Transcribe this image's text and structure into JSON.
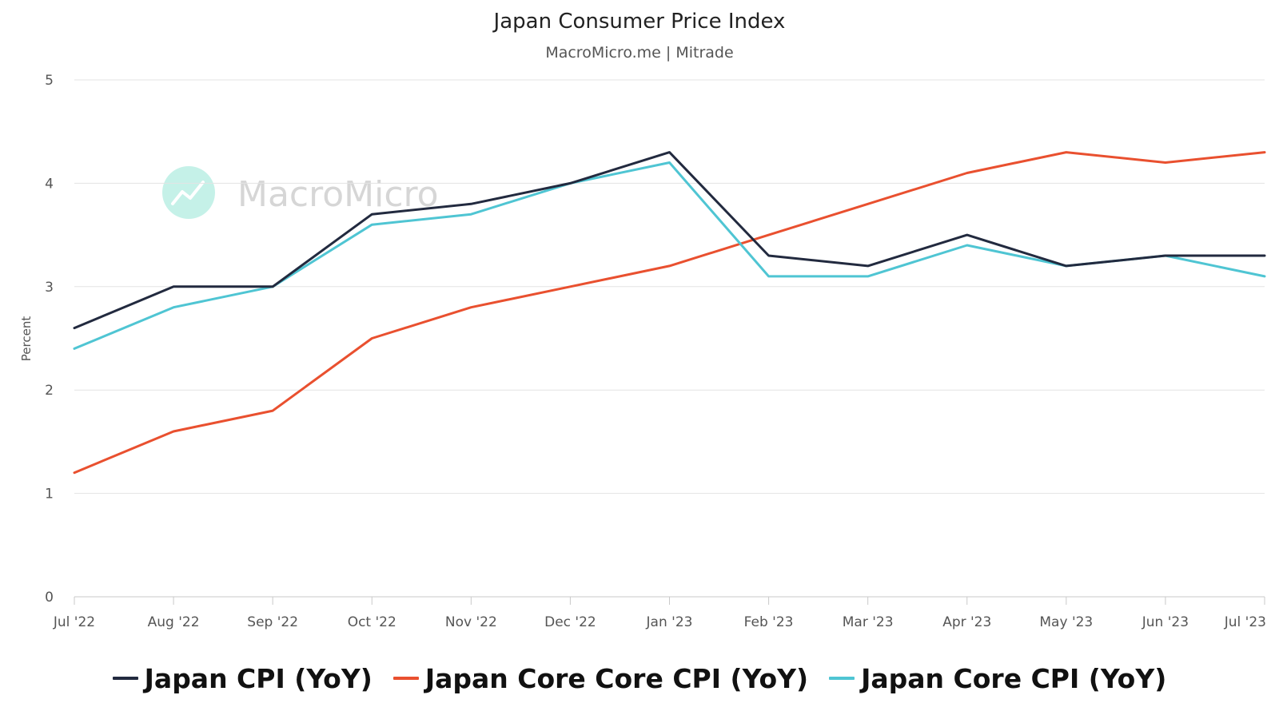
{
  "chart_data": {
    "type": "line",
    "title": "Japan Consumer Price Index",
    "subtitle": "MacroMicro.me | Mitrade",
    "ylabel": "Percent",
    "ylim": [
      0,
      5
    ],
    "yticks": [
      "0",
      "1",
      "2",
      "3",
      "4",
      "5"
    ],
    "categories": [
      "Jul '22",
      "Aug '22",
      "Sep '22",
      "Oct '22",
      "Nov '22",
      "Dec '22",
      "Jan '23",
      "Feb '23",
      "Mar '23",
      "Apr '23",
      "May '23",
      "Jun '23",
      "Jul '23"
    ],
    "grid": true,
    "legend_position": "bottom",
    "watermark": "MacroMicro",
    "series": [
      {
        "name": "Japan CPI (YoY)",
        "color": "#222a3f",
        "values": [
          2.6,
          3.0,
          3.0,
          3.7,
          3.8,
          4.0,
          4.3,
          3.3,
          3.2,
          3.5,
          3.2,
          3.3,
          3.3
        ]
      },
      {
        "name": "Japan Core Core CPI (YoY)",
        "color": "#e9502f",
        "values": [
          1.2,
          1.6,
          1.8,
          2.5,
          2.8,
          3.0,
          3.2,
          3.5,
          3.8,
          4.1,
          4.3,
          4.2,
          4.3
        ]
      },
      {
        "name": "Japan Core CPI (YoY)",
        "color": "#4fc5d3",
        "values": [
          2.4,
          2.8,
          3.0,
          3.6,
          3.7,
          4.0,
          4.2,
          3.1,
          3.1,
          3.4,
          3.2,
          3.3,
          3.1
        ]
      }
    ]
  }
}
